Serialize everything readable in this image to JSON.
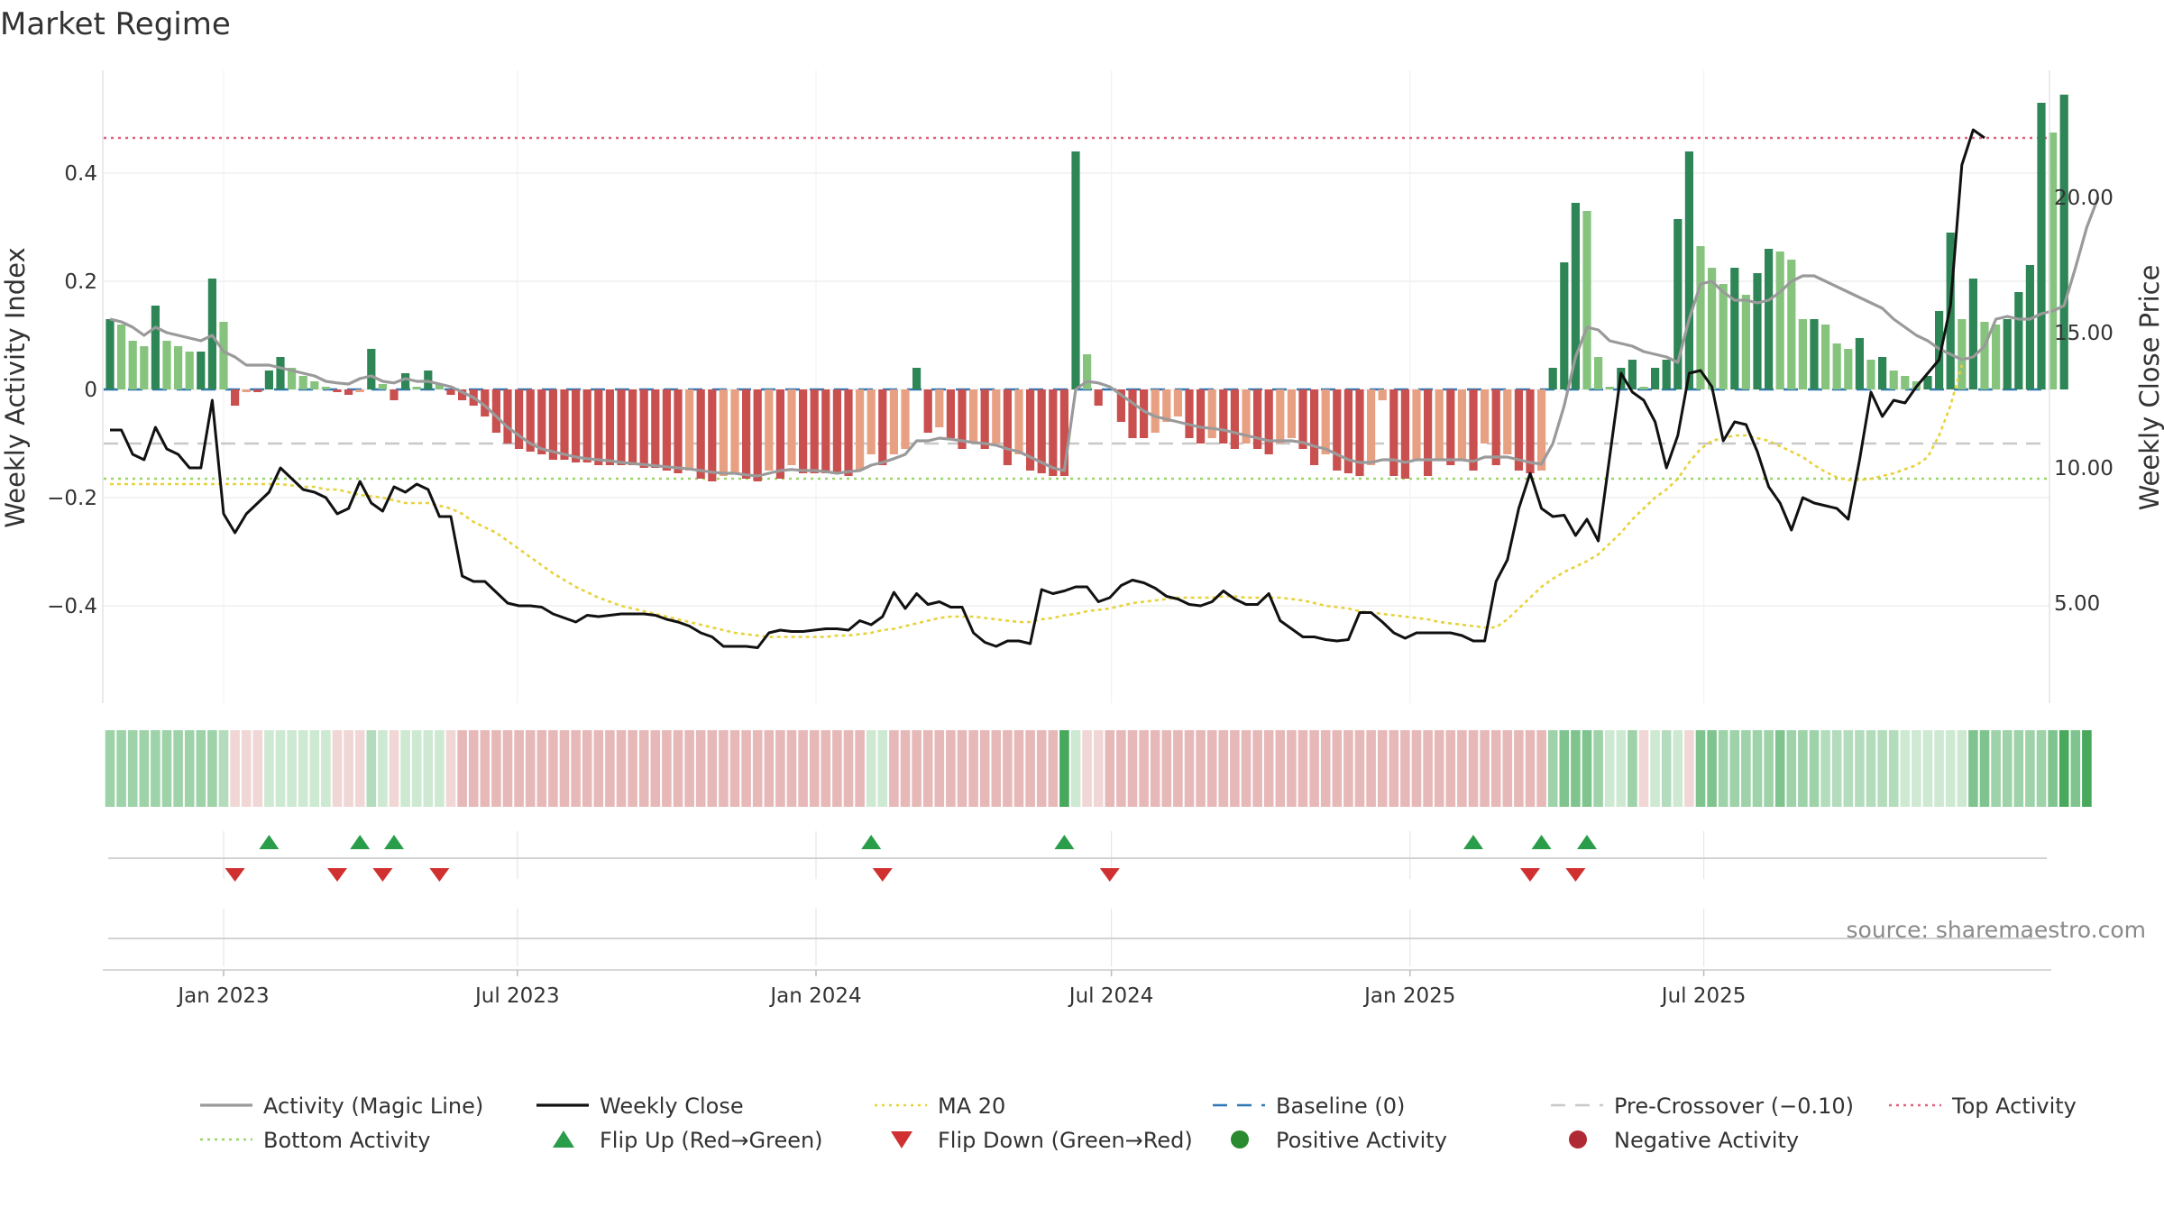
{
  "title": "Market Regime",
  "source": "source: sharemaestro.com",
  "chart_data": {
    "type": "bar",
    "x_start": "2022-10-23",
    "x_step_days": 7,
    "x_ticks": [
      "Jan 2023",
      "Jul 2023",
      "Jan 2024",
      "Jul 2024",
      "Jan 2025",
      "Jul 2025"
    ],
    "x_tick_dates": [
      "2023-01-01",
      "2023-07-01",
      "2024-01-01",
      "2024-07-01",
      "2025-01-01",
      "2025-07-01"
    ],
    "y_left": {
      "label": "Weekly Activity Index",
      "range": [
        -0.58,
        0.59
      ],
      "ticks": [
        -0.4,
        -0.2,
        0,
        0.2,
        0.4
      ],
      "tick_labels": [
        "−0.4",
        "−0.2",
        "0",
        "0.2",
        "0.4"
      ]
    },
    "y_right": {
      "label": "Weekly Close Price",
      "range": [
        1.3,
        24.7
      ],
      "ticks": [
        5,
        10,
        15,
        20
      ],
      "tick_labels": [
        "5.00",
        "10.00",
        "15.00",
        "20.00"
      ]
    },
    "activity": [
      0.13,
      0.12,
      0.09,
      0.08,
      0.155,
      0.09,
      0.08,
      0.07,
      0.07,
      0.205,
      0.125,
      -0.03,
      -0.005,
      -0.005,
      0.035,
      0.06,
      0.04,
      0.025,
      0.015,
      0.005,
      -0.005,
      -0.01,
      -0.005,
      0.075,
      0.01,
      -0.02,
      0.03,
      0.005,
      0.035,
      0.01,
      -0.01,
      -0.02,
      -0.03,
      -0.05,
      -0.08,
      -0.1,
      -0.11,
      -0.115,
      -0.12,
      -0.13,
      -0.13,
      -0.135,
      -0.135,
      -0.14,
      -0.14,
      -0.14,
      -0.14,
      -0.145,
      -0.145,
      -0.15,
      -0.155,
      -0.15,
      -0.165,
      -0.17,
      -0.16,
      -0.155,
      -0.165,
      -0.17,
      -0.15,
      -0.165,
      -0.14,
      -0.155,
      -0.155,
      -0.155,
      -0.155,
      -0.16,
      -0.15,
      -0.12,
      -0.14,
      -0.12,
      -0.11,
      0.04,
      -0.08,
      -0.07,
      -0.09,
      -0.11,
      -0.1,
      -0.11,
      -0.1,
      -0.14,
      -0.12,
      -0.15,
      -0.155,
      -0.16,
      -0.16,
      0.44,
      0.065,
      -0.03,
      0,
      -0.06,
      -0.09,
      -0.09,
      -0.08,
      -0.06,
      -0.05,
      -0.09,
      -0.1,
      -0.09,
      -0.1,
      -0.11,
      -0.1,
      -0.11,
      -0.12,
      -0.1,
      -0.09,
      -0.11,
      -0.14,
      -0.12,
      -0.15,
      -0.155,
      -0.16,
      -0.14,
      -0.02,
      -0.16,
      -0.165,
      -0.13,
      -0.16,
      -0.13,
      -0.14,
      -0.13,
      -0.15,
      -0.1,
      -0.14,
      -0.12,
      -0.15,
      -0.155,
      -0.15,
      0.04,
      0.235,
      0.345,
      0.33,
      0.06,
      0.005,
      0.04,
      0.055,
      0.005,
      0.04,
      0.055,
      0.315,
      0.44,
      0.265,
      0.225,
      0.195,
      0.225,
      0.175,
      0.215,
      0.26,
      0.255,
      0.24,
      0.13,
      0.13,
      0.12,
      0.085,
      0.075,
      0.095,
      0.055,
      0.06,
      0.035,
      0.025,
      0.015,
      0.025,
      0.145,
      0.29,
      0.13,
      0.205,
      0.125,
      0.12,
      0.13,
      0.18,
      0.23,
      0.53,
      0.475,
      0.545
    ],
    "magic_line": [
      0.13,
      0.125,
      0.115,
      0.1,
      0.115,
      0.105,
      0.1,
      0.095,
      0.09,
      0.1,
      0.07,
      0.06,
      0.045,
      0.045,
      0.045,
      0.04,
      0.035,
      0.03,
      0.025,
      0.015,
      0.012,
      0.01,
      0.02,
      0.025,
      0.015,
      0.012,
      0.02,
      0.015,
      0.015,
      0.01,
      0.005,
      -0.005,
      -0.015,
      -0.03,
      -0.05,
      -0.07,
      -0.085,
      -0.1,
      -0.11,
      -0.115,
      -0.12,
      -0.125,
      -0.128,
      -0.13,
      -0.132,
      -0.135,
      -0.137,
      -0.139,
      -0.141,
      -0.143,
      -0.145,
      -0.147,
      -0.15,
      -0.153,
      -0.155,
      -0.155,
      -0.158,
      -0.16,
      -0.155,
      -0.15,
      -0.148,
      -0.15,
      -0.15,
      -0.152,
      -0.155,
      -0.152,
      -0.15,
      -0.14,
      -0.135,
      -0.128,
      -0.12,
      -0.095,
      -0.095,
      -0.09,
      -0.092,
      -0.095,
      -0.098,
      -0.1,
      -0.103,
      -0.11,
      -0.115,
      -0.125,
      -0.135,
      -0.145,
      -0.15,
      0.0,
      0.015,
      0.012,
      0.005,
      -0.01,
      -0.025,
      -0.04,
      -0.05,
      -0.055,
      -0.06,
      -0.065,
      -0.07,
      -0.072,
      -0.075,
      -0.08,
      -0.085,
      -0.09,
      -0.095,
      -0.095,
      -0.095,
      -0.098,
      -0.105,
      -0.11,
      -0.12,
      -0.13,
      -0.135,
      -0.135,
      -0.13,
      -0.13,
      -0.135,
      -0.13,
      -0.13,
      -0.13,
      -0.13,
      -0.13,
      -0.133,
      -0.125,
      -0.125,
      -0.125,
      -0.13,
      -0.135,
      -0.138,
      -0.1,
      -0.03,
      0.06,
      0.115,
      0.11,
      0.09,
      0.085,
      0.08,
      0.07,
      0.065,
      0.06,
      0.05,
      0.13,
      0.195,
      0.2,
      0.18,
      0.165,
      0.165,
      0.16,
      0.165,
      0.18,
      0.2,
      0.21,
      0.21,
      0.2,
      0.19,
      0.18,
      0.17,
      0.16,
      0.15,
      0.13,
      0.115,
      0.1,
      0.09,
      0.075,
      0.065,
      0.055,
      0.06,
      0.08,
      0.13,
      0.135,
      0.13,
      0.13,
      0.14,
      0.145,
      0.155,
      0.225,
      0.3,
      0.355
    ],
    "weekly_close": [
      11.4,
      11.4,
      10.5,
      10.3,
      11.5,
      10.7,
      10.5,
      10.0,
      10.0,
      12.5,
      8.3,
      7.6,
      8.3,
      8.7,
      9.1,
      10.0,
      9.6,
      9.2,
      9.1,
      8.9,
      8.3,
      8.5,
      9.5,
      8.7,
      8.4,
      9.3,
      9.1,
      9.4,
      9.2,
      8.2,
      8.2,
      6.0,
      5.8,
      5.8,
      5.4,
      5.0,
      4.9,
      4.9,
      4.85,
      4.6,
      4.45,
      4.3,
      4.55,
      4.5,
      4.55,
      4.6,
      4.6,
      4.6,
      4.55,
      4.4,
      4.3,
      4.15,
      3.9,
      3.75,
      3.4,
      3.4,
      3.4,
      3.35,
      3.9,
      4.0,
      3.95,
      3.95,
      4.0,
      4.05,
      4.05,
      4.0,
      4.35,
      4.2,
      4.5,
      5.4,
      4.8,
      5.35,
      4.95,
      5.05,
      4.85,
      4.85,
      3.9,
      3.55,
      3.4,
      3.6,
      3.6,
      3.5,
      5.5,
      5.35,
      5.45,
      5.6,
      5.6,
      5.05,
      5.2,
      5.65,
      5.85,
      5.75,
      5.55,
      5.25,
      5.15,
      4.95,
      4.9,
      5.05,
      5.45,
      5.15,
      4.95,
      4.95,
      5.35,
      4.35,
      4.05,
      3.75,
      3.75,
      3.65,
      3.6,
      3.65,
      4.65,
      4.65,
      4.3,
      3.9,
      3.7,
      3.9,
      3.9,
      3.9,
      3.9,
      3.8,
      3.6,
      3.6,
      5.8,
      6.6,
      8.5,
      9.8,
      8.5,
      8.2,
      8.25,
      7.5,
      8.1,
      7.3,
      10.4,
      13.5,
      12.8,
      12.5,
      11.7,
      10.0,
      11.2,
      13.5,
      13.6,
      13.0,
      11.0,
      11.7,
      11.6,
      10.6,
      9.3,
      8.7,
      7.7,
      8.9,
      8.7,
      8.6,
      8.5,
      8.1,
      10.3,
      12.8,
      11.9,
      12.5,
      12.4,
      13.0,
      13.5,
      14.0,
      16.0,
      21.2,
      22.5,
      22.2
    ],
    "ma20": [
      9.4,
      9.4,
      9.4,
      9.4,
      9.4,
      9.4,
      9.4,
      9.4,
      9.4,
      9.4,
      9.4,
      9.4,
      9.4,
      9.4,
      9.4,
      9.4,
      9.35,
      9.3,
      9.3,
      9.2,
      9.2,
      9.1,
      9.0,
      8.95,
      8.9,
      8.8,
      8.7,
      8.7,
      8.7,
      8.6,
      8.5,
      8.3,
      8.0,
      7.8,
      7.6,
      7.3,
      7.0,
      6.7,
      6.4,
      6.1,
      5.85,
      5.6,
      5.4,
      5.2,
      5.05,
      4.9,
      4.8,
      4.7,
      4.6,
      4.5,
      4.4,
      4.3,
      4.2,
      4.1,
      4.0,
      3.9,
      3.85,
      3.8,
      3.75,
      3.75,
      3.75,
      3.75,
      3.75,
      3.75,
      3.8,
      3.8,
      3.85,
      3.9,
      4.0,
      4.05,
      4.15,
      4.25,
      4.35,
      4.45,
      4.5,
      4.5,
      4.5,
      4.45,
      4.4,
      4.35,
      4.3,
      4.3,
      4.4,
      4.45,
      4.55,
      4.6,
      4.7,
      4.75,
      4.8,
      4.9,
      5.0,
      5.05,
      5.1,
      5.15,
      5.2,
      5.2,
      5.2,
      5.2,
      5.25,
      5.25,
      5.2,
      5.2,
      5.2,
      5.2,
      5.15,
      5.1,
      5.0,
      4.9,
      4.85,
      4.8,
      4.7,
      4.65,
      4.6,
      4.55,
      4.5,
      4.45,
      4.4,
      4.3,
      4.25,
      4.2,
      4.15,
      4.1,
      4.1,
      4.4,
      4.8,
      5.2,
      5.6,
      5.9,
      6.15,
      6.35,
      6.55,
      6.8,
      7.2,
      7.6,
      8.1,
      8.5,
      8.9,
      9.2,
      9.6,
      10.2,
      10.7,
      11.0,
      11.1,
      11.2,
      11.2,
      11.1,
      11.0,
      10.8,
      10.6,
      10.4,
      10.1,
      9.85,
      9.65,
      9.55,
      9.55,
      9.6,
      9.7,
      9.8,
      9.95,
      10.1,
      10.4,
      11.2,
      12.3,
      13.8
    ],
    "regime_strip": [
      "g3",
      "g3",
      "g3",
      "g3",
      "g3",
      "g3",
      "g3",
      "g3",
      "g3",
      "g3",
      "g2",
      "r1",
      "r1",
      "r1",
      "g1",
      "g1",
      "g1",
      "g1",
      "g1",
      "g1",
      "r1",
      "r1",
      "r1",
      "g2",
      "g1",
      "r1",
      "g1",
      "g1",
      "g1",
      "g1",
      "r1",
      "r2",
      "r2",
      "r2",
      "r2",
      "r2",
      "r2",
      "r2",
      "r2",
      "r2",
      "r2",
      "r2",
      "r2",
      "r2",
      "r2",
      "r2",
      "r2",
      "r2",
      "r2",
      "r2",
      "r2",
      "r2",
      "r2",
      "r2",
      "r2",
      "r2",
      "r2",
      "r2",
      "r2",
      "r2",
      "r2",
      "r2",
      "r2",
      "r2",
      "r2",
      "r2",
      "r2",
      "g1",
      "g1",
      "r2",
      "r2",
      "r2",
      "r2",
      "r2",
      "r2",
      "r2",
      "r2",
      "r2",
      "r2",
      "r2",
      "r2",
      "r2",
      "r2",
      "r2",
      "g5",
      "g1",
      "r1",
      "r1",
      "r2",
      "r2",
      "r2",
      "r2",
      "r2",
      "r2",
      "r2",
      "r2",
      "r2",
      "r2",
      "r2",
      "r2",
      "r2",
      "r2",
      "r2",
      "r2",
      "r2",
      "r2",
      "r2",
      "r2",
      "r2",
      "r2",
      "r2",
      "r2",
      "r2",
      "r2",
      "r2",
      "r2",
      "r2",
      "r2",
      "r2",
      "r2",
      "r2",
      "r2",
      "r2",
      "r2",
      "r2",
      "r2",
      "r2",
      "g3",
      "g4",
      "g4",
      "g4",
      "g3",
      "g1",
      "g1",
      "g3",
      "r1",
      "g1",
      "g2",
      "g1",
      "r1",
      "g4",
      "g4",
      "g3",
      "g3",
      "g3",
      "g3",
      "g3",
      "g4",
      "g3",
      "g3",
      "g3",
      "g2",
      "g2",
      "g2",
      "g2",
      "g2",
      "g2",
      "g2",
      "g1",
      "g1",
      "g1",
      "g1",
      "g1",
      "g1",
      "g4",
      "g4",
      "g3",
      "g3",
      "g3",
      "g3",
      "g3",
      "g4",
      "g5",
      "g4",
      "g5"
    ],
    "flip_up_weeks": [
      14,
      22,
      25,
      67,
      84,
      120,
      126,
      130
    ],
    "flip_down_weeks": [
      11,
      20,
      24,
      29,
      68,
      88,
      125,
      129
    ],
    "baseline": 0,
    "pre_crossover": -0.1,
    "top_activity": 0.465,
    "bottom_activity": -0.165,
    "legend": [
      {
        "label": "Activity (Magic Line)",
        "kind": "line",
        "color": "#9a9a9a"
      },
      {
        "label": "Weekly Close",
        "kind": "line",
        "color": "#111111"
      },
      {
        "label": "MA 20",
        "kind": "dotted",
        "color": "#e8d23a"
      },
      {
        "label": "Baseline (0)",
        "kind": "dashed",
        "color": "#2f77b4"
      },
      {
        "label": "Pre-Crossover (−0.10)",
        "kind": "dashed",
        "color": "#c8c8c8"
      },
      {
        "label": "Top Activity",
        "kind": "dotted",
        "color": "#e06080"
      },
      {
        "label": "Bottom Activity",
        "kind": "dotted",
        "color": "#99d666"
      },
      {
        "label": "Flip Up (Red→Green)",
        "kind": "tri-up",
        "color": "#2a9d4a"
      },
      {
        "label": "Flip Down (Green→Red)",
        "kind": "tri-down",
        "color": "#d03030"
      },
      {
        "label": "Positive Activity",
        "kind": "dot",
        "color": "#2a8a30"
      },
      {
        "label": "Negative Activity",
        "kind": "dot",
        "color": "#b02a35"
      }
    ],
    "colors": {
      "pos_dark": "#2e8555",
      "pos_light": "#86c47e",
      "neg_dark": "#c9504f",
      "neg_light": "#e8a082",
      "magic_line": "#9a9a9a",
      "close": "#111111",
      "ma20": "#e8d23a",
      "baseline": "#2f77b4",
      "pre_crossover": "#c8c8c8",
      "top": "#e06080",
      "bottom": "#99d666",
      "strip": {
        "g1": "#cde9d2",
        "g2": "#b3dcbc",
        "g3": "#9ed2a8",
        "g4": "#7fc48e",
        "g5": "#48a85c",
        "r1": "#f1d6d6",
        "r2": "#e7b8b8"
      }
    }
  }
}
